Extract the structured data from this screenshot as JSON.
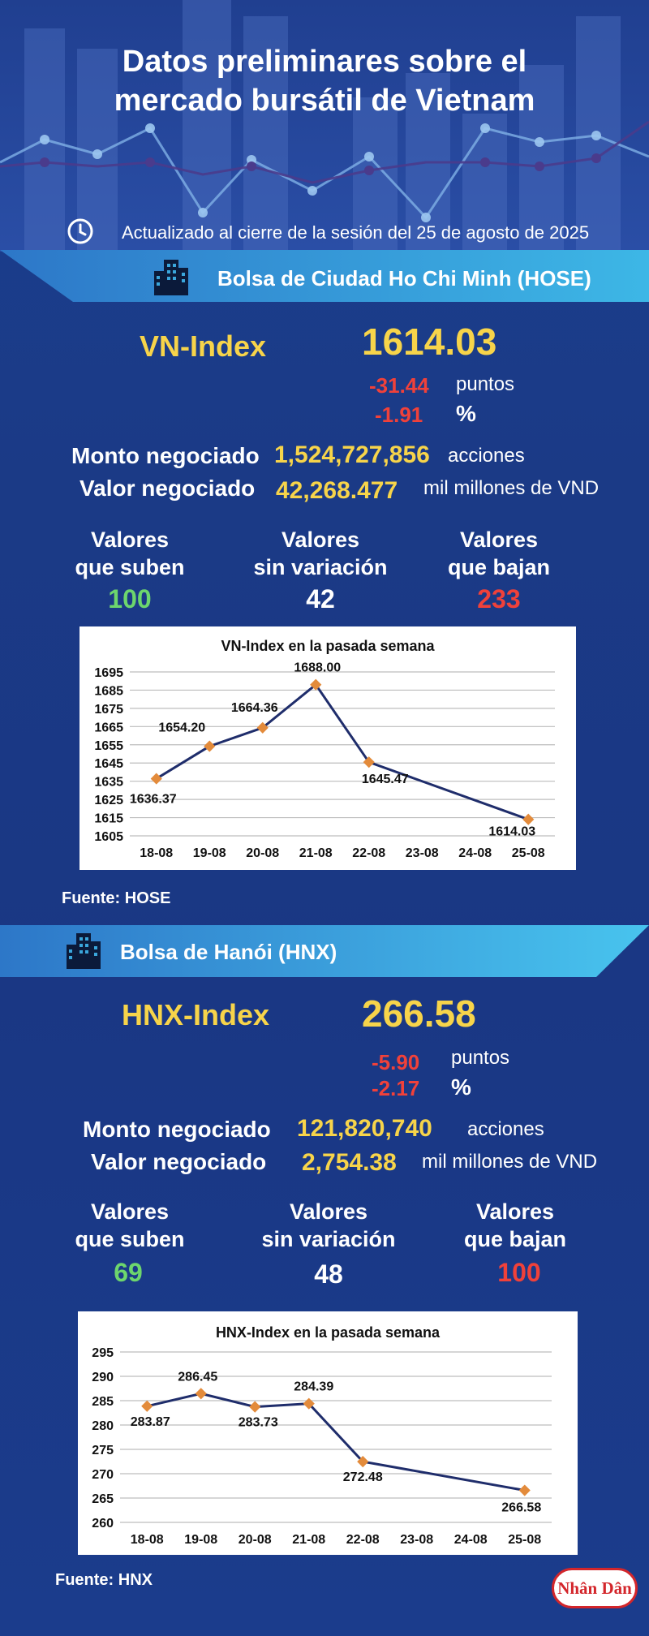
{
  "header": {
    "title_line1": "Datos preliminares sobre el",
    "title_line2": "mercado bursátil de Vietnam",
    "updated": "Actualizado al cierre de la sesión del 25 de agosto de 2025"
  },
  "hose": {
    "banner": "Bolsa de Ciudad Ho Chi Minh (HOSE)",
    "index_name": "VN-Index",
    "index_value": "1614.03",
    "change_points": "-31.44",
    "points_unit": "puntos",
    "change_pct": "-1.91",
    "pct_unit": "%",
    "volume_label": "Monto negociado",
    "volume_value": "1,524,727,856",
    "volume_unit": "acciones",
    "value_label": "Valor negociado",
    "value_value": "42,268.477",
    "value_unit": "mil millones de VND",
    "up_label_1": "Valores",
    "up_label_2": "que suben",
    "up_count": "100",
    "flat_label_1": "Valores",
    "flat_label_2": "sin variación",
    "flat_count": "42",
    "down_label_1": "Valores",
    "down_label_2": "que bajan",
    "down_count": "233",
    "source": "Fuente: HOSE"
  },
  "hnx": {
    "banner": "Bolsa de Hanói (HNX)",
    "index_name": "HNX-Index",
    "index_value": "266.58",
    "change_points": "-5.90",
    "points_unit": "puntos",
    "change_pct": "-2.17",
    "pct_unit": "%",
    "volume_label": "Monto negociado",
    "volume_value": "121,820,740",
    "volume_unit": "acciones",
    "value_label": "Valor negociado",
    "value_value": "2,754.38",
    "value_unit": "mil millones de VND",
    "up_label_1": "Valores",
    "up_label_2": "que suben",
    "up_count": "69",
    "flat_label_1": "Valores",
    "flat_label_2": "sin variación",
    "flat_count": "48",
    "down_label_1": "Valores",
    "down_label_2": "que bajan",
    "down_count": "100",
    "source": "Fuente:  HNX"
  },
  "logo_text": "Nhân Dân",
  "colors": {
    "accent_yellow": "#f7d44a",
    "negative_red": "#f0413a",
    "positive_green": "#6dd66d",
    "line_navy": "#1f2d6b",
    "marker_orange": "#e38b3b"
  },
  "chart_data": [
    {
      "type": "line",
      "title": "VN-Index en la pasada semana",
      "categories": [
        "18-08",
        "19-08",
        "20-08",
        "21-08",
        "22-08",
        "23-08",
        "24-08",
        "25-08"
      ],
      "series": [
        {
          "points": [
            {
              "x": "18-08",
              "y": 1636.37,
              "label": "1636.37"
            },
            {
              "x": "19-08",
              "y": 1654.2,
              "label": "1654.20"
            },
            {
              "x": "20-08",
              "y": 1664.36,
              "label": "1664.36"
            },
            {
              "x": "21-08",
              "y": 1688.0,
              "label": "1688.00"
            },
            {
              "x": "22-08",
              "y": 1645.47,
              "label": "1645.47"
            },
            {
              "x": "25-08",
              "y": 1614.03,
              "label": "1614.03"
            }
          ]
        }
      ],
      "yticks": [
        1605,
        1615,
        1625,
        1635,
        1645,
        1655,
        1665,
        1675,
        1685,
        1695
      ],
      "ylim": [
        1605,
        1695
      ],
      "grid": true
    },
    {
      "type": "line",
      "title": "HNX-Index en la pasada semana",
      "categories": [
        "18-08",
        "19-08",
        "20-08",
        "21-08",
        "22-08",
        "23-08",
        "24-08",
        "25-08"
      ],
      "series": [
        {
          "points": [
            {
              "x": "18-08",
              "y": 283.87,
              "label": "283.87"
            },
            {
              "x": "19-08",
              "y": 286.45,
              "label": "286.45"
            },
            {
              "x": "20-08",
              "y": 283.73,
              "label": "283.73"
            },
            {
              "x": "21-08",
              "y": 284.39,
              "label": "284.39"
            },
            {
              "x": "22-08",
              "y": 272.48,
              "label": "272.48"
            },
            {
              "x": "25-08",
              "y": 266.58,
              "label": "266.58"
            }
          ]
        }
      ],
      "yticks": [
        260,
        265,
        270,
        275,
        280,
        285,
        290,
        295
      ],
      "ylim": [
        260,
        295
      ],
      "grid": true
    }
  ]
}
